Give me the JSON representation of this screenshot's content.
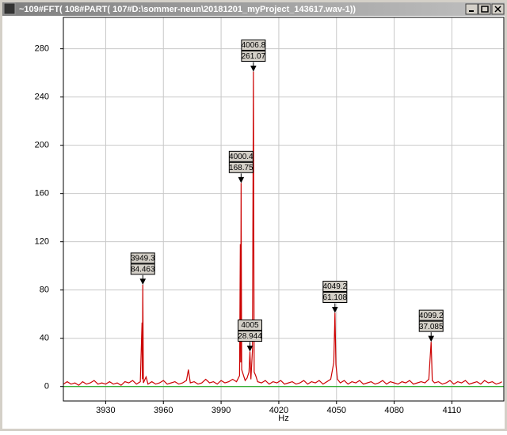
{
  "window": {
    "title": "~109#FFT( 108#PART( 107#D:\\sommer-neun\\20181201_myProject_143617.wav-1))"
  },
  "chart_data": {
    "type": "line",
    "x_label": "Hz",
    "color": "#cc0000",
    "baseline_color": "#00a000",
    "grid": true,
    "xlim": [
      3908,
      4137
    ],
    "ylim": [
      -12,
      306
    ],
    "xticks": [
      3930,
      3960,
      3990,
      4020,
      4050,
      4080,
      4110
    ],
    "yticks": [
      0,
      40,
      80,
      120,
      160,
      200,
      240,
      280
    ],
    "x": [
      3908,
      3910,
      3912,
      3914,
      3916,
      3918,
      3920,
      3922,
      3924,
      3926,
      3928,
      3930,
      3932,
      3934,
      3936,
      3938,
      3940,
      3942,
      3944,
      3946,
      3948,
      3948.9,
      3949.1,
      3949.3,
      3949.6,
      3951,
      3952,
      3954,
      3956,
      3958,
      3960,
      3962,
      3964,
      3966,
      3968,
      3970,
      3972,
      3973,
      3974,
      3976,
      3978,
      3980,
      3982,
      3984,
      3986,
      3988,
      3990,
      3992,
      3994,
      3996,
      3998,
      3999.6,
      4000,
      4000.2,
      4000.4,
      4000.7,
      4001.5,
      4002.5,
      4003.5,
      4004.5,
      4005,
      4005.5,
      4006.3,
      4006.8,
      4007.2,
      4008,
      4009,
      4011,
      4013,
      4015,
      4017,
      4019,
      4021,
      4023,
      4025,
      4027,
      4029,
      4031,
      4033,
      4035,
      4037,
      4039,
      4041,
      4043,
      4045,
      4047,
      4048.6,
      4049.2,
      4049.7,
      4050.5,
      4052,
      4054,
      4056,
      4058,
      4060,
      4062,
      4064,
      4066,
      4068,
      4070,
      4072,
      4074,
      4076,
      4078,
      4080,
      4082,
      4084,
      4086,
      4088,
      4090,
      4092,
      4094,
      4096,
      4098,
      4099.2,
      4099.8,
      4101,
      4103,
      4105,
      4107,
      4109,
      4111,
      4113,
      4115,
      4117,
      4119,
      4121,
      4123,
      4125,
      4127,
      4129,
      4131,
      4133,
      4135,
      4136
    ],
    "values": [
      2,
      4,
      2,
      3,
      1,
      4,
      2,
      3,
      5,
      2,
      3,
      2,
      4,
      2,
      3,
      1,
      4,
      3,
      5,
      2,
      4,
      53,
      6,
      84.463,
      3,
      8,
      2,
      4,
      2,
      3,
      5,
      2,
      3,
      4,
      2,
      3,
      5,
      14,
      3,
      4,
      2,
      3,
      6,
      3,
      4,
      2,
      5,
      3,
      4,
      6,
      4,
      9,
      118,
      20,
      168.75,
      14,
      10,
      5,
      7,
      12,
      28.944,
      6,
      30,
      261.07,
      12,
      9,
      4,
      3,
      5,
      2,
      4,
      3,
      5,
      2,
      3,
      4,
      2,
      3,
      5,
      2,
      4,
      3,
      5,
      2,
      4,
      6,
      20,
      61.108,
      18,
      6,
      3,
      5,
      2,
      4,
      3,
      5,
      2,
      3,
      4,
      2,
      3,
      5,
      2,
      4,
      3,
      2,
      4,
      3,
      5,
      2,
      3,
      4,
      3,
      6,
      37.085,
      5,
      3,
      4,
      2,
      3,
      5,
      2,
      4,
      3,
      5,
      2,
      3,
      4,
      2,
      5,
      3,
      4,
      2,
      3,
      4
    ],
    "annotations": [
      {
        "x": 3949.3,
        "y": 84.463
      },
      {
        "x": 4000.4,
        "y": 168.75
      },
      {
        "x": 4005,
        "y": 28.944
      },
      {
        "x": 4006.8,
        "y": 261.07
      },
      {
        "x": 4049.2,
        "y": 61.108
      },
      {
        "x": 4099.2,
        "y": 37.085
      }
    ]
  }
}
